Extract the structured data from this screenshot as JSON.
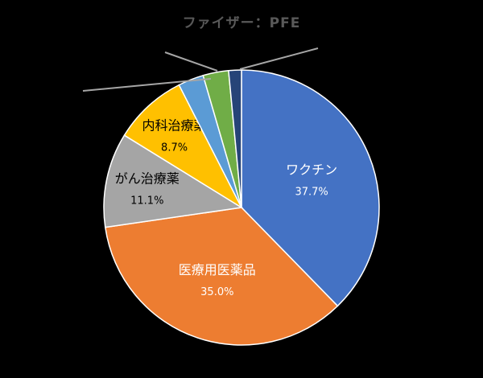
{
  "chart_data": {
    "type": "pie",
    "title": "ファイザー：PFE",
    "slices": [
      {
        "label": "ワクチン",
        "value": 37.7,
        "value_label": "37.7%",
        "color": "#4472C4",
        "label_color": "#FFFFFF"
      },
      {
        "label": "医療用医薬品",
        "value": 35.0,
        "value_label": "35.0%",
        "color": "#ED7D31",
        "label_color": "#FFFFFF"
      },
      {
        "label": "がん治療薬",
        "value": 11.1,
        "value_label": "11.1%",
        "color": "#A5A5A5",
        "label_color": "#000000"
      },
      {
        "label": "内科治療薬",
        "value": 8.7,
        "value_label": "8.7%",
        "color": "#FFC000",
        "label_color": "#000000"
      },
      {
        "label": "",
        "value": 3.0,
        "value_label": "",
        "color": "#5B9BD5",
        "label_color": "#000000"
      },
      {
        "label": "",
        "value": 3.0,
        "value_label": "",
        "color": "#70AD47",
        "label_color": "#000000"
      },
      {
        "label": "",
        "value": 1.5,
        "value_label": "",
        "color": "#264478",
        "label_color": "#000000"
      }
    ],
    "start_angle_deg": 0,
    "direction": "clockwise",
    "legend": "none"
  }
}
